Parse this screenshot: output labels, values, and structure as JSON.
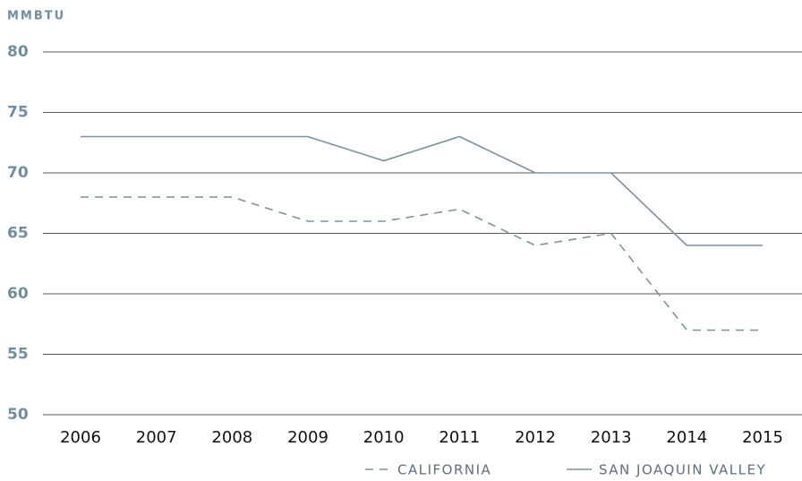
{
  "chart_data": {
    "type": "line",
    "y_label": "MMBTU",
    "categories": [
      "2006",
      "2007",
      "2008",
      "2009",
      "2010",
      "2011",
      "2012",
      "2013",
      "2014",
      "2015"
    ],
    "series": [
      {
        "name": "CALIFORNIA",
        "color": "#7b929f",
        "style": "dashed",
        "values": [
          68,
          68,
          68,
          66,
          66,
          67,
          64,
          65,
          57,
          57
        ]
      },
      {
        "name": "SAN JOAQUIN VALLEY",
        "color": "#7b929f",
        "style": "solid",
        "values": [
          73,
          73,
          73,
          73,
          71,
          73,
          70,
          70,
          64,
          64
        ]
      }
    ],
    "ylim": [
      50,
      80
    ],
    "yticks": [
      50,
      55,
      60,
      65,
      70,
      75,
      80
    ],
    "grid": true
  }
}
